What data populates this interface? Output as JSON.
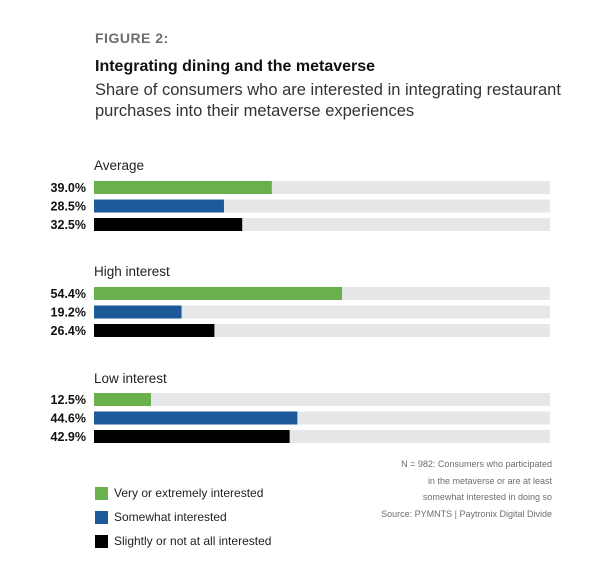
{
  "figure_label": "FIGURE 2:",
  "title": "Integrating dining and the metaverse",
  "subtitle": "Share of consumers who are interested in integrating restaurant purchases into their metaverse experiences",
  "colors": {
    "track": "#e6e7e8",
    "very": "#6ab04c",
    "somewhat": "#1d5a99",
    "slightly": "#000000"
  },
  "legend": [
    {
      "label": "Very or extremely interested",
      "color": "#6ab04c"
    },
    {
      "label": "Somewhat interested",
      "color": "#1d5a99"
    },
    {
      "label": "Slightly or not at all interested",
      "color": "#000000"
    }
  ],
  "note": {
    "line1": "N = 982: Consumers who participated",
    "line2": "in the metaverse or are at least",
    "line3": "somewhat interested in doing so",
    "line4": "Source: PYMNTS | Paytronix   Digital Divide"
  },
  "chart_data": {
    "type": "bar",
    "orientation": "horizontal",
    "xlim": [
      0,
      100
    ],
    "grid": false,
    "legend_position": "bottom-left",
    "groups": [
      "Average",
      "High interest",
      "Low interest"
    ],
    "series": [
      {
        "name": "Very or extremely interested",
        "color": "#6ab04c",
        "values": [
          39.0,
          54.4,
          12.5
        ]
      },
      {
        "name": "Somewhat interested",
        "color": "#1d5a99",
        "values": [
          28.5,
          19.2,
          44.6
        ]
      },
      {
        "name": "Slightly or not at all interested",
        "color": "#000000",
        "values": [
          32.5,
          26.4,
          42.9
        ]
      }
    ],
    "value_labels": [
      [
        "39.0%",
        "28.5%",
        "32.5%"
      ],
      [
        "54.4%",
        "19.2%",
        "26.4%"
      ],
      [
        "12.5%",
        "44.6%",
        "42.9%"
      ]
    ]
  }
}
